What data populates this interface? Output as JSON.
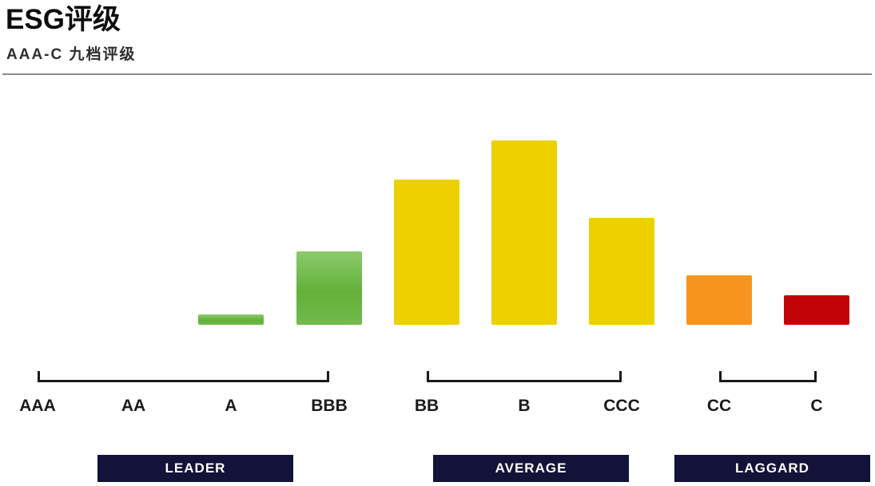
{
  "header": {
    "title": "ESG评级",
    "subtitle": "AAA-C 九档评级"
  },
  "chart_data": {
    "type": "bar",
    "title": "ESG评级",
    "subtitle": "AAA-C 九档评级",
    "categories": [
      "AAA",
      "AA",
      "A",
      "BBB",
      "BB",
      "B",
      "CCC",
      "CC",
      "C"
    ],
    "values": [
      0,
      0,
      13,
      92,
      182,
      231,
      134,
      62,
      37
    ],
    "value_basis": "relative bar heights (no numeric y-axis shown in figure)",
    "bar_color_keys": [
      "green",
      "green",
      "green",
      "green",
      "yellow",
      "yellow",
      "yellow",
      "orange",
      "red"
    ],
    "xlabel": "",
    "ylabel": "",
    "grid": false,
    "legend": false,
    "groups": [
      {
        "label": "LEADER",
        "from": "AAA",
        "to": "BBB"
      },
      {
        "label": "AVERAGE",
        "from": "BB",
        "to": "CCC"
      },
      {
        "label": "LAGGARD",
        "from": "CC",
        "to": "C"
      }
    ]
  },
  "colors": {
    "green_top": "#8cc96d",
    "green": "#63b13a",
    "green_bottom": "#72ba4c",
    "yellow": "#ecd000",
    "orange": "#f7941e",
    "red": "#c00408",
    "group_box": "#131238",
    "group_box_text": "#ffffff",
    "bracket": "#1a1a1a",
    "divider": "#8a8a8a"
  }
}
